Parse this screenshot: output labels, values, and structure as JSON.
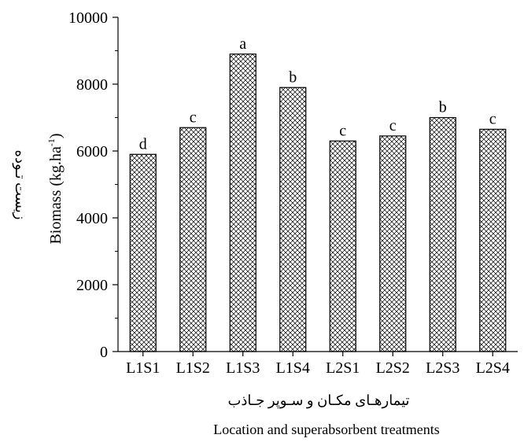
{
  "chart_data": {
    "type": "bar",
    "title": "",
    "xlabel_fa": "تیمارهـای مکـان و سـوپر جـاذب",
    "xlabel": "Location and superabsorbent treatments",
    "ylabel_fa": "زیست تـوده",
    "ylabel": "Biomass (kg.ha",
    "ylabel_sup": "-1",
    "ylabel_close": ")",
    "ylim": [
      0,
      10000
    ],
    "yticks": [
      "0",
      "2000",
      "4000",
      "6000",
      "8000",
      "10000"
    ],
    "categories": [
      "L1S1",
      "L1S2",
      "L1S3",
      "L1S4",
      "L2S1",
      "L2S2",
      "L2S3",
      "L2S4"
    ],
    "values": [
      5900,
      6700,
      8900,
      7900,
      6300,
      6450,
      7000,
      6650
    ],
    "letters": [
      "d",
      "c",
      "a",
      "b",
      "c",
      "c",
      "b",
      "c"
    ],
    "bar_pattern": "crosshatch",
    "grid": false,
    "legend": "none"
  }
}
